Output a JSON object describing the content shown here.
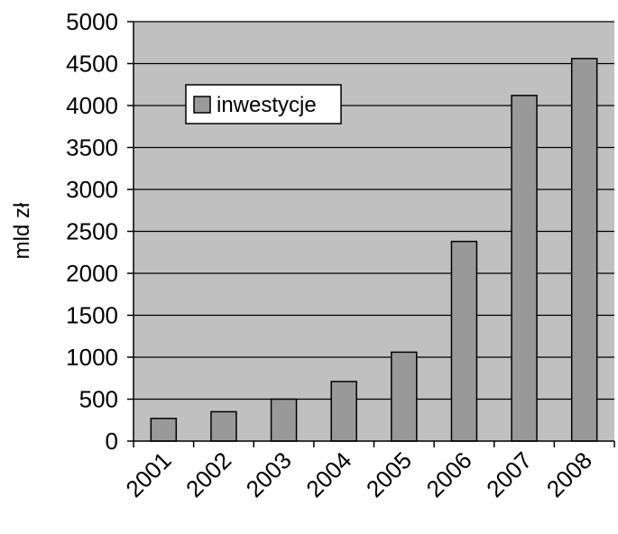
{
  "chart_data": {
    "type": "bar",
    "categories": [
      "2001",
      "2002",
      "2003",
      "2004",
      "2005",
      "2006",
      "2007",
      "2008"
    ],
    "series": [
      {
        "name": "inwestycje",
        "values": [
          270,
          350,
          500,
          710,
          1060,
          2380,
          4120,
          4560
        ]
      }
    ],
    "title": "",
    "xlabel": "",
    "ylabel": "mld zł",
    "ylim": [
      0,
      5000
    ],
    "yticks": [
      0,
      500,
      1000,
      1500,
      2000,
      2500,
      3000,
      3500,
      4000,
      4500,
      5000
    ],
    "grid": true,
    "legend_position": "top-left",
    "colors": {
      "plot_background": "#c0c0c0",
      "bar_fill": "#999999",
      "bar_stroke": "#000000",
      "gridline": "#000000"
    }
  }
}
